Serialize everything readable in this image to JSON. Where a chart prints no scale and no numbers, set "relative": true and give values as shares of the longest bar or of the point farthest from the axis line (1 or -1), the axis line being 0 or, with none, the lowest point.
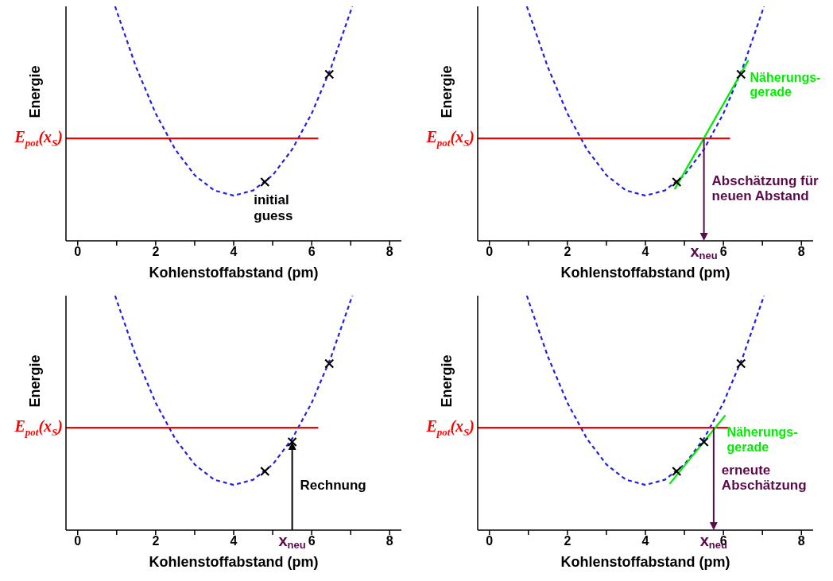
{
  "chart_data": [
    {
      "type": "line",
      "relative": true,
      "xlabel": "Kohlenstoffabstand (pm)",
      "ylabel": "Energie",
      "xlim": [
        -0.3,
        8.3
      ],
      "xticks": [
        0,
        {
          "value": 1,
          "label": null
        },
        2,
        {
          "value": 3,
          "label": null
        },
        4,
        {
          "value": 5,
          "label": null
        },
        6,
        {
          "value": 7,
          "label": null
        },
        8
      ],
      "grid": false,
      "series": [
        {
          "type": "line",
          "color": "#2020e0",
          "line_style": "dashed",
          "x": [
            0.96,
            1,
            1.5,
            2,
            2.5,
            3,
            3.5,
            4,
            4.5,
            5,
            5.5,
            6,
            6.5,
            7,
            7.04
          ],
          "values": [
            1.0,
            0.98,
            0.74,
            0.543,
            0.39,
            0.28,
            0.215,
            0.193,
            0.215,
            0.28,
            0.39,
            0.543,
            0.74,
            0.98,
            1.0
          ]
        },
        {
          "type": "line",
          "name": "E$_{pot}$(x$_{S}$)",
          "color": "#ff0000",
          "line_style": "solid",
          "x": [
            -0.3,
            6.17
          ],
          "values": [
            0.437,
            0.437
          ]
        },
        {
          "type": "scatter",
          "color": "#000000",
          "marker": "cross",
          "x": [
            4.8,
            6.45
          ],
          "values": [
            0.251,
            0.71
          ]
        }
      ],
      "annotations": [
        {
          "text": "initial\nguess",
          "x": 4.8,
          "y": 0.251
        }
      ]
    },
    {
      "type": "line",
      "relative": true,
      "xlabel": "Kohlenstoffabstand (pm)",
      "ylabel": "Energie",
      "xlim": [
        -0.3,
        8.3
      ],
      "xticks": [
        0,
        {
          "value": 1,
          "label": null
        },
        2,
        {
          "value": 3,
          "label": null
        },
        4,
        {
          "value": 5,
          "label": null
        },
        6,
        {
          "value": 7,
          "label": null
        },
        8
      ],
      "grid": false,
      "series": [
        {
          "type": "line",
          "color": "#2020e0",
          "line_style": "dashed",
          "x": [
            0.96,
            1,
            1.5,
            2,
            2.5,
            3,
            3.5,
            4,
            4.5,
            5,
            5.5,
            6,
            6.5,
            7,
            7.04
          ],
          "values": [
            1.0,
            0.98,
            0.74,
            0.543,
            0.39,
            0.28,
            0.215,
            0.193,
            0.215,
            0.28,
            0.39,
            0.543,
            0.74,
            0.98,
            1.0
          ]
        },
        {
          "type": "line",
          "name": "E$_{pot}$(x$_{S}$)",
          "color": "#ff0000",
          "line_style": "solid",
          "x": [
            -0.3,
            6.17
          ],
          "values": [
            0.437,
            0.437
          ]
        },
        {
          "type": "line",
          "name": "Näherungs-\ngerade",
          "color": "#00ee00",
          "line_style": "solid",
          "x": [
            4.75,
            6.64
          ],
          "values": [
            0.22,
            0.77
          ]
        },
        {
          "type": "scatter",
          "color": "#000000",
          "marker": "cross",
          "x": [
            4.8,
            6.45
          ],
          "values": [
            0.251,
            0.71
          ]
        }
      ],
      "annotations": [
        {
          "text": "Abschätzung für\nneuen Abstand",
          "x": 5.5,
          "y": 0.437
        },
        "x$_{neu}$"
      ]
    },
    {
      "type": "line",
      "relative": true,
      "xlabel": "Kohlenstoffabstand (pm)",
      "ylabel": "Energie",
      "xlim": [
        -0.3,
        8.3
      ],
      "xticks": [
        0,
        {
          "value": 1,
          "label": null
        },
        2,
        {
          "value": 3,
          "label": null
        },
        4,
        {
          "value": 5,
          "label": null
        },
        6,
        {
          "value": 7,
          "label": null
        },
        8
      ],
      "grid": false,
      "series": [
        {
          "type": "line",
          "color": "#2020e0",
          "line_style": "dashed",
          "x": [
            0.96,
            1,
            1.5,
            2,
            2.5,
            3,
            3.5,
            4,
            4.5,
            5,
            5.5,
            6,
            6.5,
            7,
            7.04
          ],
          "values": [
            1.0,
            0.98,
            0.74,
            0.543,
            0.39,
            0.28,
            0.215,
            0.193,
            0.215,
            0.28,
            0.39,
            0.543,
            0.74,
            0.98,
            1.0
          ]
        },
        {
          "type": "line",
          "name": "E$_{pot}$(x$_{S}$)",
          "color": "#ff0000",
          "line_style": "solid",
          "x": [
            -0.3,
            6.17
          ],
          "values": [
            0.437,
            0.437
          ]
        },
        {
          "type": "scatter",
          "color": "#000000",
          "marker": "cross",
          "x": [
            4.8,
            5.5,
            6.45
          ],
          "values": [
            0.251,
            0.376,
            0.71
          ]
        }
      ],
      "annotations": [
        "x$_{neu}$",
        {
          "text": "Rechnung",
          "x": 5.5,
          "y": 0.376
        }
      ]
    },
    {
      "type": "line",
      "relative": true,
      "xlabel": "Kohlenstoffabstand (pm)",
      "ylabel": "Energie",
      "xlim": [
        -0.3,
        8.3
      ],
      "xticks": [
        0,
        {
          "value": 1,
          "label": null
        },
        2,
        {
          "value": 3,
          "label": null
        },
        4,
        {
          "value": 5,
          "label": null
        },
        6,
        {
          "value": 7,
          "label": null
        },
        8
      ],
      "grid": false,
      "series": [
        {
          "type": "line",
          "color": "#2020e0",
          "line_style": "dashed",
          "x": [
            0.96,
            1,
            1.5,
            2,
            2.5,
            3,
            3.5,
            4,
            4.5,
            5,
            5.5,
            6,
            6.5,
            7,
            7.04
          ],
          "values": [
            1.0,
            0.98,
            0.74,
            0.543,
            0.39,
            0.28,
            0.215,
            0.193,
            0.215,
            0.28,
            0.39,
            0.543,
            0.74,
            0.98,
            1.0
          ]
        },
        {
          "type": "line",
          "name": "E$_{pot}$(x$_{S}$)",
          "color": "#ff0000",
          "line_style": "solid",
          "x": [
            -0.3,
            6.17
          ],
          "values": [
            0.437,
            0.437
          ]
        },
        {
          "type": "line",
          "name": "Näherungs-\ngerade",
          "color": "#00ee00",
          "line_style": "solid",
          "x": [
            4.62,
            6.05
          ],
          "values": [
            0.197,
            0.49
          ]
        },
        {
          "type": "scatter",
          "color": "#000000",
          "marker": "cross",
          "x": [
            4.8,
            5.5,
            6.45
          ],
          "values": [
            0.251,
            0.376,
            0.71
          ]
        }
      ],
      "annotations": [
        {
          "text": "erneute\nAbschätzung",
          "x": 5.75,
          "y": 0.437
        },
        "x$_{neu}$"
      ]
    }
  ]
}
